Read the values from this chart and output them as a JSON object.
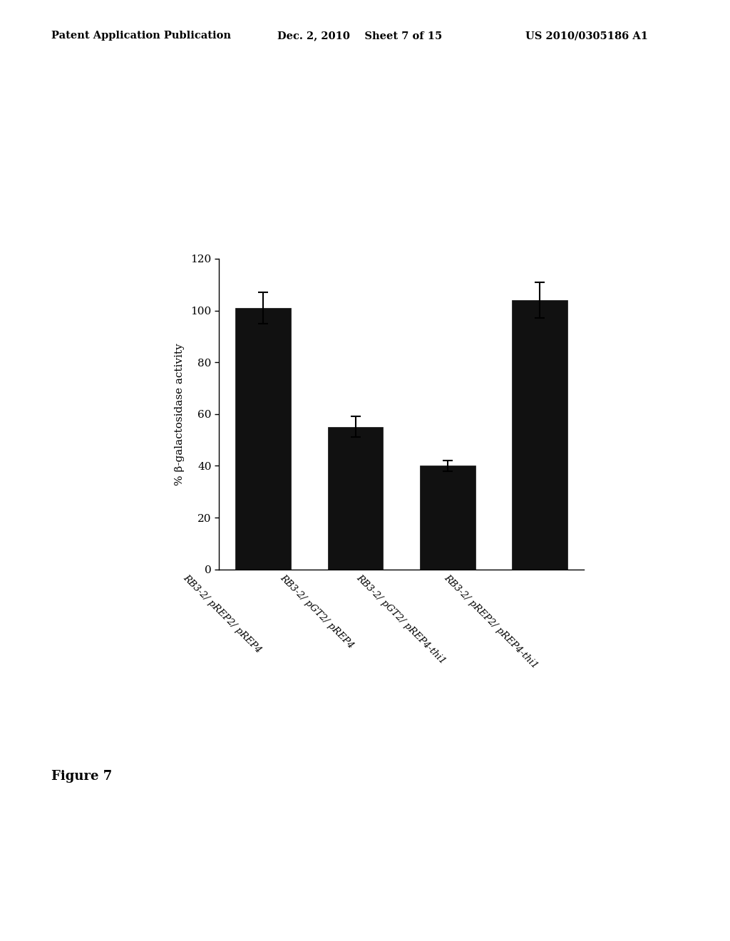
{
  "categories": [
    "RB3-2/ pREP2/ pREP4",
    "RB3-2/ pGT2/ pREP4",
    "RB3-2/ pGT2/ pREP4-thi1",
    "RB3-2/ pREP2/ pREP4-thi1"
  ],
  "values": [
    101,
    55,
    40,
    104
  ],
  "errors": [
    6,
    4,
    2,
    7
  ],
  "bar_color": "#111111",
  "ylabel": "% β-galactosidase activity",
  "ylim": [
    0,
    120
  ],
  "yticks": [
    0,
    20,
    40,
    60,
    80,
    100,
    120
  ],
  "background_color": "#ffffff",
  "figure_caption": "Figure 7",
  "header_left": "Patent Application Publication",
  "header_mid": "Dec. 2, 2010    Sheet 7 of 15",
  "header_right": "US 2010/0305186 A1"
}
